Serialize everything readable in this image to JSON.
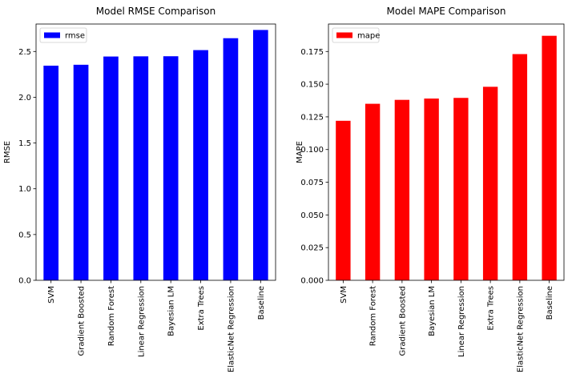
{
  "chart_data": [
    {
      "type": "bar",
      "title": "Model RMSE Comparison",
      "xlabel": "",
      "ylabel": "RMSE",
      "categories": [
        "SVM",
        "Gradient Boosted",
        "Random Forest",
        "Linear Regression",
        "Bayesian LM",
        "Extra Trees",
        "ElasticNet Regression",
        "Baseline"
      ],
      "series": [
        {
          "name": "rmse",
          "color": "#0000ff",
          "values": [
            2.345,
            2.355,
            2.445,
            2.447,
            2.448,
            2.515,
            2.645,
            2.735
          ]
        }
      ],
      "ylim": [
        0,
        2.8
      ],
      "yticks": [
        0.0,
        0.5,
        1.0,
        1.5,
        2.0,
        2.5
      ],
      "ytick_labels": [
        "0.0",
        "0.5",
        "1.0",
        "1.5",
        "2.0",
        "2.5"
      ],
      "legend_position": "top-left",
      "grid": false
    },
    {
      "type": "bar",
      "title": "Model MAPE Comparison",
      "xlabel": "",
      "ylabel": "MAPE",
      "categories": [
        "SVM",
        "Random Forest",
        "Gradient Boosted",
        "Bayesian LM",
        "Linear Regression",
        "Extra Trees",
        "ElasticNet Regression",
        "Baseline"
      ],
      "series": [
        {
          "name": "mape",
          "color": "#ff0000",
          "values": [
            0.122,
            0.135,
            0.138,
            0.139,
            0.1395,
            0.148,
            0.173,
            0.187
          ]
        }
      ],
      "ylim": [
        0,
        0.196
      ],
      "yticks": [
        0.0,
        0.025,
        0.05,
        0.075,
        0.1,
        0.125,
        0.15,
        0.175
      ],
      "ytick_labels": [
        "0.000",
        "0.025",
        "0.050",
        "0.075",
        "0.100",
        "0.125",
        "0.150",
        "0.175"
      ],
      "legend_position": "top-left",
      "grid": false
    }
  ]
}
